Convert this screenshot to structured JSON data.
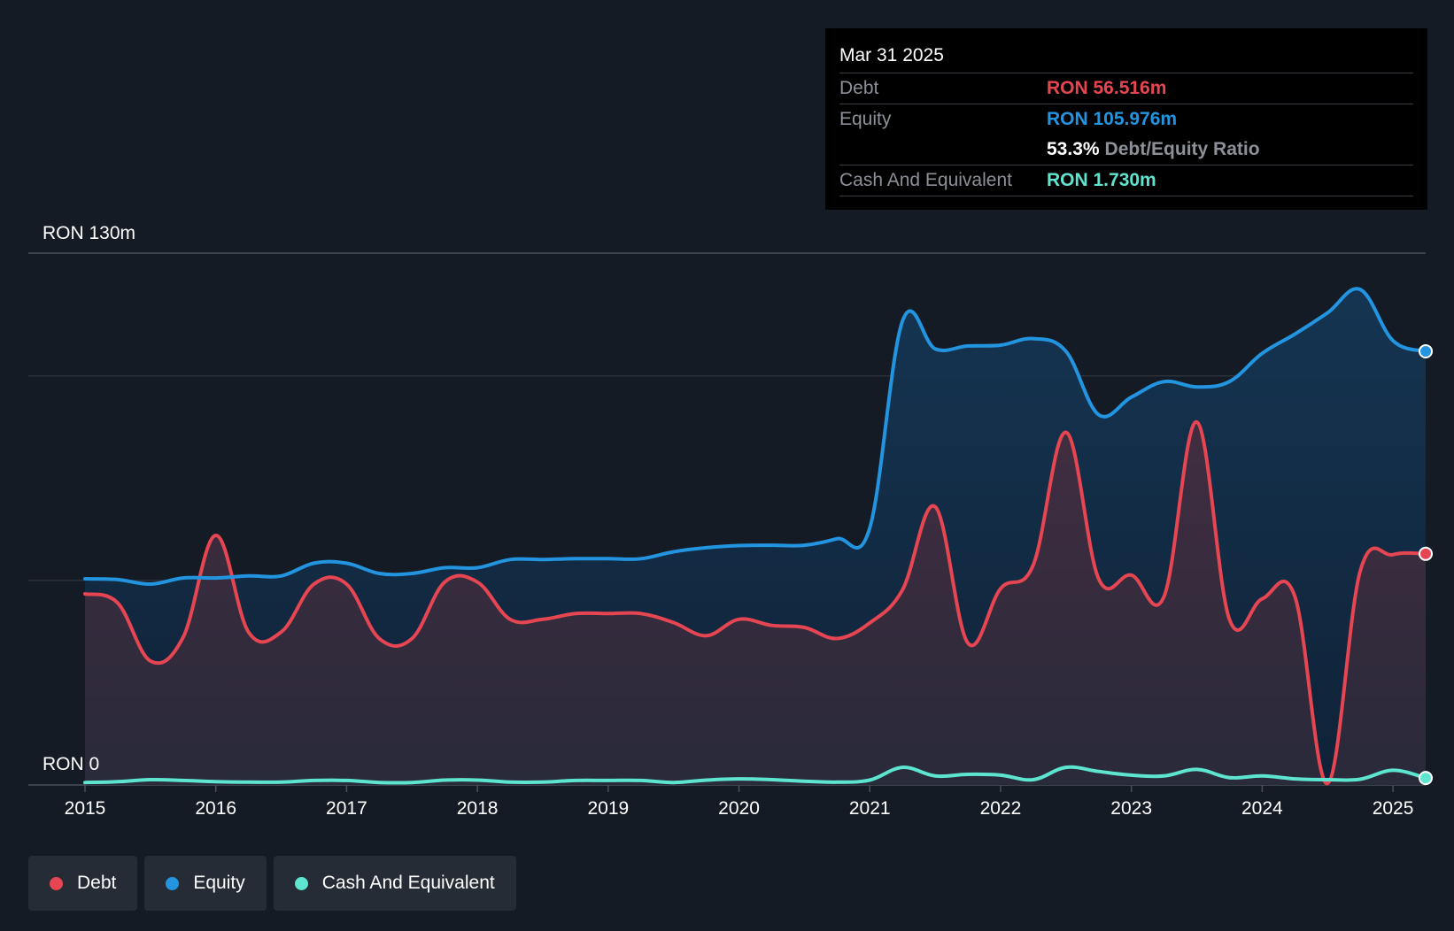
{
  "colors": {
    "debt": "#e64552",
    "equity": "#2394e0",
    "cash": "#5ee5cf",
    "background": "#151b24"
  },
  "tooltip": {
    "date": "Mar 31 2025",
    "debt_label": "Debt",
    "debt_value": "RON 56.516m",
    "equity_label": "Equity",
    "equity_value": "RON 105.976m",
    "ratio_value": "53.3%",
    "ratio_label": "Debt/Equity Ratio",
    "cash_label": "Cash And Equivalent",
    "cash_value": "RON 1.730m"
  },
  "legend": [
    {
      "label": "Debt",
      "color": "#e64552"
    },
    {
      "label": "Equity",
      "color": "#2394e0"
    },
    {
      "label": "Cash And Equivalent",
      "color": "#5ee5cf"
    }
  ],
  "chart_data": {
    "type": "area",
    "y_top_label": "RON 130m",
    "y_bottom_label": "RON 0",
    "ylim": [
      0,
      130
    ],
    "xlim": [
      2015.0,
      2025.25
    ],
    "x_ticks": [
      "2015",
      "2016",
      "2017",
      "2018",
      "2019",
      "2020",
      "2021",
      "2022",
      "2023",
      "2024",
      "2025"
    ],
    "series": [
      {
        "name": "Debt",
        "points": [
          [
            2015.0,
            46.7
          ],
          [
            2015.25,
            44.5
          ],
          [
            2015.5,
            30.3
          ],
          [
            2015.75,
            36.1
          ],
          [
            2016.0,
            61.0
          ],
          [
            2016.25,
            37.4
          ],
          [
            2016.5,
            37.4
          ],
          [
            2016.75,
            49.1
          ],
          [
            2017.0,
            49.1
          ],
          [
            2017.25,
            35.8
          ],
          [
            2017.5,
            35.8
          ],
          [
            2017.75,
            49.6
          ],
          [
            2018.0,
            49.6
          ],
          [
            2018.25,
            40.5
          ],
          [
            2018.5,
            40.5
          ],
          [
            2018.75,
            41.9
          ],
          [
            2019.0,
            41.9
          ],
          [
            2019.25,
            41.9
          ],
          [
            2019.5,
            39.7
          ],
          [
            2019.75,
            36.5
          ],
          [
            2020.0,
            40.5
          ],
          [
            2020.25,
            39.0
          ],
          [
            2020.5,
            38.5
          ],
          [
            2020.75,
            35.8
          ],
          [
            2021.0,
            39.6
          ],
          [
            2021.25,
            47.7
          ],
          [
            2021.5,
            68.0
          ],
          [
            2021.75,
            34.7
          ],
          [
            2022.0,
            48.0
          ],
          [
            2022.25,
            53.8
          ],
          [
            2022.5,
            86.2
          ],
          [
            2022.75,
            50.4
          ],
          [
            2023.0,
            51.3
          ],
          [
            2023.25,
            46.1
          ],
          [
            2023.5,
            88.7
          ],
          [
            2023.75,
            40.5
          ],
          [
            2024.0,
            45.5
          ],
          [
            2024.25,
            46.1
          ],
          [
            2024.5,
            0.4
          ],
          [
            2024.75,
            52.3
          ],
          [
            2025.0,
            56.3
          ],
          [
            2025.25,
            56.5
          ]
        ]
      },
      {
        "name": "Equity",
        "points": [
          [
            2015.0,
            50.4
          ],
          [
            2015.25,
            50.2
          ],
          [
            2015.5,
            49.1
          ],
          [
            2015.75,
            50.6
          ],
          [
            2016.0,
            50.6
          ],
          [
            2016.25,
            51.1
          ],
          [
            2016.5,
            51.1
          ],
          [
            2016.75,
            54.2
          ],
          [
            2017.0,
            54.2
          ],
          [
            2017.25,
            51.7
          ],
          [
            2017.5,
            51.7
          ],
          [
            2017.75,
            53.1
          ],
          [
            2018.0,
            53.1
          ],
          [
            2018.25,
            55.1
          ],
          [
            2018.5,
            55.1
          ],
          [
            2018.75,
            55.3
          ],
          [
            2019.0,
            55.3
          ],
          [
            2019.25,
            55.3
          ],
          [
            2019.5,
            57.0
          ],
          [
            2019.75,
            58.0
          ],
          [
            2020.0,
            58.5
          ],
          [
            2020.25,
            58.6
          ],
          [
            2020.5,
            58.6
          ],
          [
            2020.75,
            60.2
          ],
          [
            2021.0,
            62.8
          ],
          [
            2021.25,
            113.4
          ],
          [
            2021.5,
            106.6
          ],
          [
            2021.75,
            107.3
          ],
          [
            2022.0,
            107.5
          ],
          [
            2022.25,
            109.1
          ],
          [
            2022.5,
            106.0
          ],
          [
            2022.75,
            90.5
          ],
          [
            2023.0,
            94.8
          ],
          [
            2023.25,
            98.6
          ],
          [
            2023.5,
            97.3
          ],
          [
            2023.75,
            98.6
          ],
          [
            2024.0,
            105.5
          ],
          [
            2024.25,
            110.2
          ],
          [
            2024.5,
            115.4
          ],
          [
            2024.75,
            121.1
          ],
          [
            2025.0,
            108.6
          ],
          [
            2025.25,
            106.0
          ]
        ]
      },
      {
        "name": "Cash And Equivalent",
        "points": [
          [
            2015.0,
            0.6
          ],
          [
            2015.25,
            0.8
          ],
          [
            2015.5,
            1.3
          ],
          [
            2015.75,
            1.1
          ],
          [
            2016.0,
            0.8
          ],
          [
            2016.25,
            0.7
          ],
          [
            2016.5,
            0.7
          ],
          [
            2016.75,
            1.1
          ],
          [
            2017.0,
            1.1
          ],
          [
            2017.25,
            0.6
          ],
          [
            2017.5,
            0.6
          ],
          [
            2017.75,
            1.2
          ],
          [
            2018.0,
            1.2
          ],
          [
            2018.25,
            0.7
          ],
          [
            2018.5,
            0.7
          ],
          [
            2018.75,
            1.1
          ],
          [
            2019.0,
            1.1
          ],
          [
            2019.25,
            1.1
          ],
          [
            2019.5,
            0.6
          ],
          [
            2019.75,
            1.2
          ],
          [
            2020.0,
            1.5
          ],
          [
            2020.25,
            1.3
          ],
          [
            2020.5,
            0.9
          ],
          [
            2020.75,
            0.7
          ],
          [
            2021.0,
            1.2
          ],
          [
            2021.25,
            4.3
          ],
          [
            2021.5,
            2.2
          ],
          [
            2021.75,
            2.6
          ],
          [
            2022.0,
            2.4
          ],
          [
            2022.25,
            1.3
          ],
          [
            2022.5,
            4.3
          ],
          [
            2022.75,
            3.3
          ],
          [
            2023.0,
            2.4
          ],
          [
            2023.25,
            2.2
          ],
          [
            2023.5,
            3.8
          ],
          [
            2023.75,
            1.8
          ],
          [
            2024.0,
            2.2
          ],
          [
            2024.25,
            1.5
          ],
          [
            2024.5,
            1.3
          ],
          [
            2024.75,
            1.4
          ],
          [
            2025.0,
            3.6
          ],
          [
            2025.25,
            1.7
          ]
        ]
      }
    ],
    "grid": true,
    "legend_position": "bottom-left"
  }
}
